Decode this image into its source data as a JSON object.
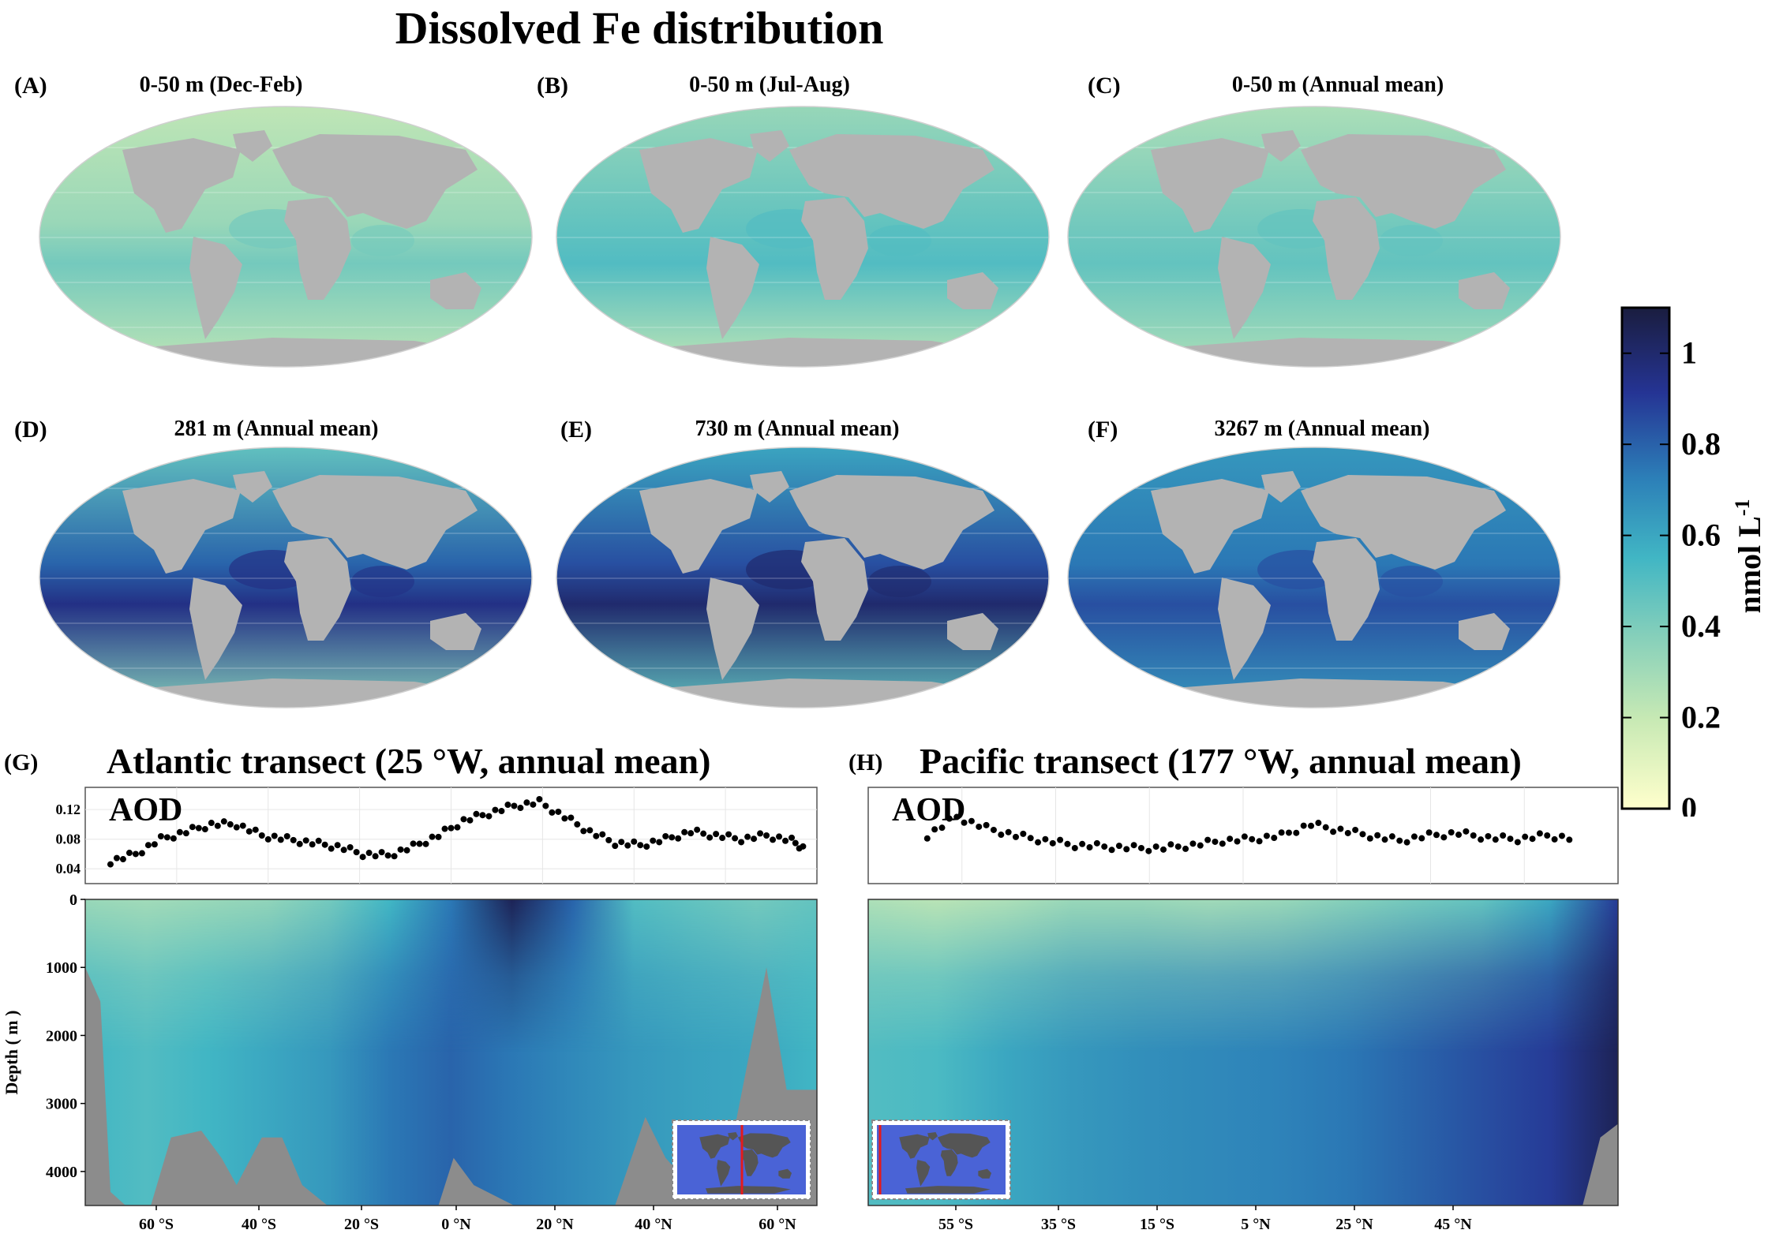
{
  "figure": {
    "title": "Dissolved Fe distribution"
  },
  "panels": {
    "a": {
      "letter": "(A)",
      "title": "0-50 m (Dec-Feb)"
    },
    "b": {
      "letter": "(B)",
      "title": "0-50 m (Jul-Aug)"
    },
    "c": {
      "letter": "(C)",
      "title": "0-50 m (Annual mean)"
    },
    "d": {
      "letter": "(D)",
      "title": "281 m (Annual mean)"
    },
    "e": {
      "letter": "(E)",
      "title": "730 m (Annual mean)"
    },
    "f": {
      "letter": "(F)",
      "title": "3267 m (Annual mean)"
    },
    "g": {
      "letter": "(G)",
      "title": "Atlantic transect (25 °W, annual mean)"
    },
    "h": {
      "letter": "(H)",
      "title": "Pacific transect (177 °W, annual mean)"
    }
  },
  "colors": {
    "land": "#b3b3b3",
    "bathymetry": "#8c8c8c",
    "scale": [
      "#ffffcc",
      "#c7e9b4",
      "#7fcdbb",
      "#41b6c4",
      "#2c7fb8",
      "#253494",
      "#1a1d3f"
    ],
    "selected_line": "#e41a1c"
  },
  "colorbar": {
    "label": "nmol L",
    "label_sup": "-1",
    "min": 0,
    "max": 1.1,
    "ticks": [
      "0",
      "0.2",
      "0.4",
      "0.6",
      "0.8",
      "1"
    ]
  },
  "chart_data": [
    {
      "type": "scatter",
      "panel": "G-AOD",
      "title": "AOD",
      "x_axis": "latitude",
      "xlim": [
        -75,
        70
      ],
      "ylim": [
        0.02,
        0.15
      ],
      "yticks": [
        "0.04",
        "0.08",
        "0.12"
      ],
      "x": [
        -70,
        -65,
        -60,
        -55,
        -50,
        -45,
        -40,
        -35,
        -30,
        -25,
        -20,
        -15,
        -10,
        -5,
        0,
        5,
        10,
        15,
        20,
        25,
        30,
        35,
        40,
        45,
        50,
        55,
        60,
        65,
        68
      ],
      "y": [
        0.05,
        0.06,
        0.08,
        0.09,
        0.1,
        0.1,
        0.085,
        0.08,
        0.075,
        0.07,
        0.06,
        0.058,
        0.07,
        0.085,
        0.105,
        0.115,
        0.125,
        0.13,
        0.11,
        0.09,
        0.075,
        0.072,
        0.08,
        0.09,
        0.085,
        0.08,
        0.085,
        0.078,
        0.065
      ]
    },
    {
      "type": "heatmap",
      "panel": "G",
      "x_axis": "latitude",
      "ylabel": "Depth ( m )",
      "xlim": [
        -75,
        70
      ],
      "ylim": [
        4500,
        0
      ],
      "xticks": [
        "60 °S",
        "40 °S",
        "20 °S",
        "0 °N",
        "20 °N",
        "40 °N",
        "60 °N"
      ],
      "yticks": [
        "0",
        "1000",
        "2000",
        "3000",
        "4000"
      ],
      "surface_fe": [
        0.3,
        0.28,
        0.3,
        0.32,
        0.4,
        0.55,
        0.75,
        1.05,
        0.8,
        0.5,
        0.45,
        0.4,
        0.45
      ],
      "deep_fe": [
        0.55,
        0.5,
        0.55,
        0.6,
        0.65,
        0.75,
        0.8,
        0.75,
        0.7,
        0.65,
        0.62,
        0.6,
        0.55
      ]
    },
    {
      "type": "scatter",
      "panel": "H-AOD",
      "title": "AOD",
      "x_axis": "latitude",
      "xlim": [
        -70,
        57
      ],
      "ylim": [
        0.02,
        0.15
      ],
      "x": [
        -60,
        -55,
        -50,
        -45,
        -40,
        -35,
        -30,
        -25,
        -20,
        -15,
        -10,
        -5,
        0,
        5,
        10,
        15,
        20,
        25,
        30,
        35,
        40,
        45,
        50
      ],
      "y": [
        0.085,
        0.11,
        0.095,
        0.085,
        0.078,
        0.072,
        0.07,
        0.068,
        0.068,
        0.072,
        0.078,
        0.08,
        0.085,
        0.1,
        0.092,
        0.085,
        0.078,
        0.085,
        0.088,
        0.082,
        0.08,
        0.085,
        0.08
      ]
    },
    {
      "type": "heatmap",
      "panel": "H",
      "x_axis": "latitude",
      "xlim": [
        -70,
        57
      ],
      "ylim": [
        4500,
        0
      ],
      "xticks": [
        "55 °S",
        "35 °S",
        "15 °S",
        "5 °N",
        "25 °N",
        "45 °N"
      ],
      "surface_fe": [
        0.25,
        0.22,
        0.25,
        0.3,
        0.3,
        0.28,
        0.3,
        0.35,
        0.4,
        0.45,
        0.6,
        0.9
      ],
      "deep_fe": [
        0.5,
        0.52,
        0.6,
        0.65,
        0.68,
        0.7,
        0.72,
        0.75,
        0.8,
        0.85,
        0.9,
        1.05
      ]
    }
  ]
}
